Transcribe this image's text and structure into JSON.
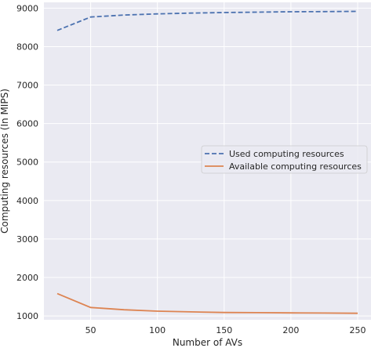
{
  "chart_data": {
    "type": "line",
    "xlabel": "Number of AVs",
    "ylabel": "Computing resources (In MIPS)",
    "xlim": [
      15,
      260
    ],
    "ylim": [
      900,
      9150
    ],
    "xticks": [
      50,
      100,
      150,
      200,
      250
    ],
    "yticks": [
      1000,
      2000,
      3000,
      4000,
      5000,
      6000,
      7000,
      8000,
      9000
    ],
    "grid": true,
    "legend_position": "center-right",
    "x": [
      25,
      50,
      75,
      100,
      125,
      150,
      175,
      200,
      225,
      250
    ],
    "series": [
      {
        "name": "Used computing resources",
        "color": "#4c72b0",
        "dash": "dashed",
        "values": [
          8420,
          8770,
          8820,
          8850,
          8870,
          8885,
          8895,
          8905,
          8910,
          8915
        ]
      },
      {
        "name": "Available computing resources",
        "color": "#dd8452",
        "dash": "solid",
        "values": [
          1580,
          1220,
          1160,
          1125,
          1105,
          1090,
          1085,
          1080,
          1075,
          1070
        ]
      }
    ]
  }
}
